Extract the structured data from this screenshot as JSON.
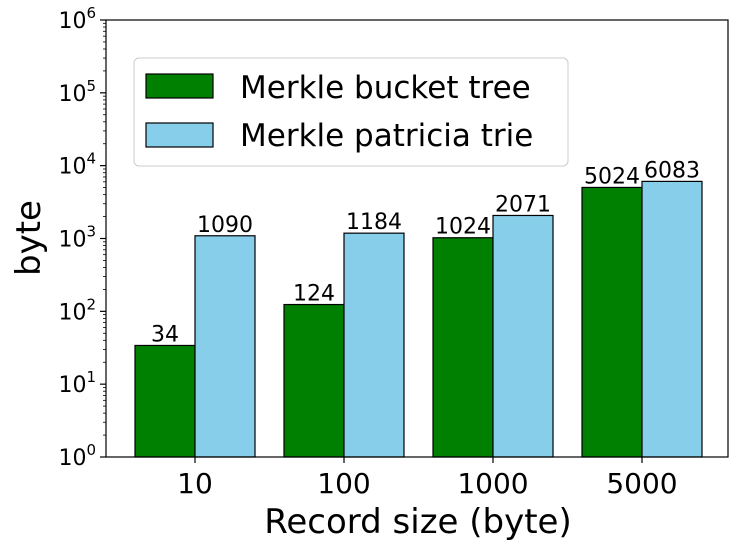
{
  "chart_data": {
    "type": "bar",
    "xlabel": "Record size (byte)",
    "ylabel": "byte",
    "yscale": "log",
    "ylim": [
      1,
      1000000
    ],
    "y_ticks": [
      {
        "value": 1,
        "base": "10",
        "exp": "0"
      },
      {
        "value": 10,
        "base": "10",
        "exp": "1"
      },
      {
        "value": 100,
        "base": "10",
        "exp": "2"
      },
      {
        "value": 1000,
        "base": "10",
        "exp": "3"
      },
      {
        "value": 10000,
        "base": "10",
        "exp": "4"
      },
      {
        "value": 100000,
        "base": "10",
        "exp": "5"
      },
      {
        "value": 1000000,
        "base": "10",
        "exp": "6"
      }
    ],
    "categories": [
      "10",
      "100",
      "1000",
      "5000"
    ],
    "series": [
      {
        "name": "Merkle bucket tree",
        "color": "#008000",
        "values": [
          34,
          124,
          1024,
          5024
        ]
      },
      {
        "name": "Merkle patricia trie",
        "color": "#87CEEB",
        "values": [
          1090,
          1184,
          2071,
          6083
        ]
      }
    ],
    "legend_position": "upper-left",
    "grid": false
  }
}
